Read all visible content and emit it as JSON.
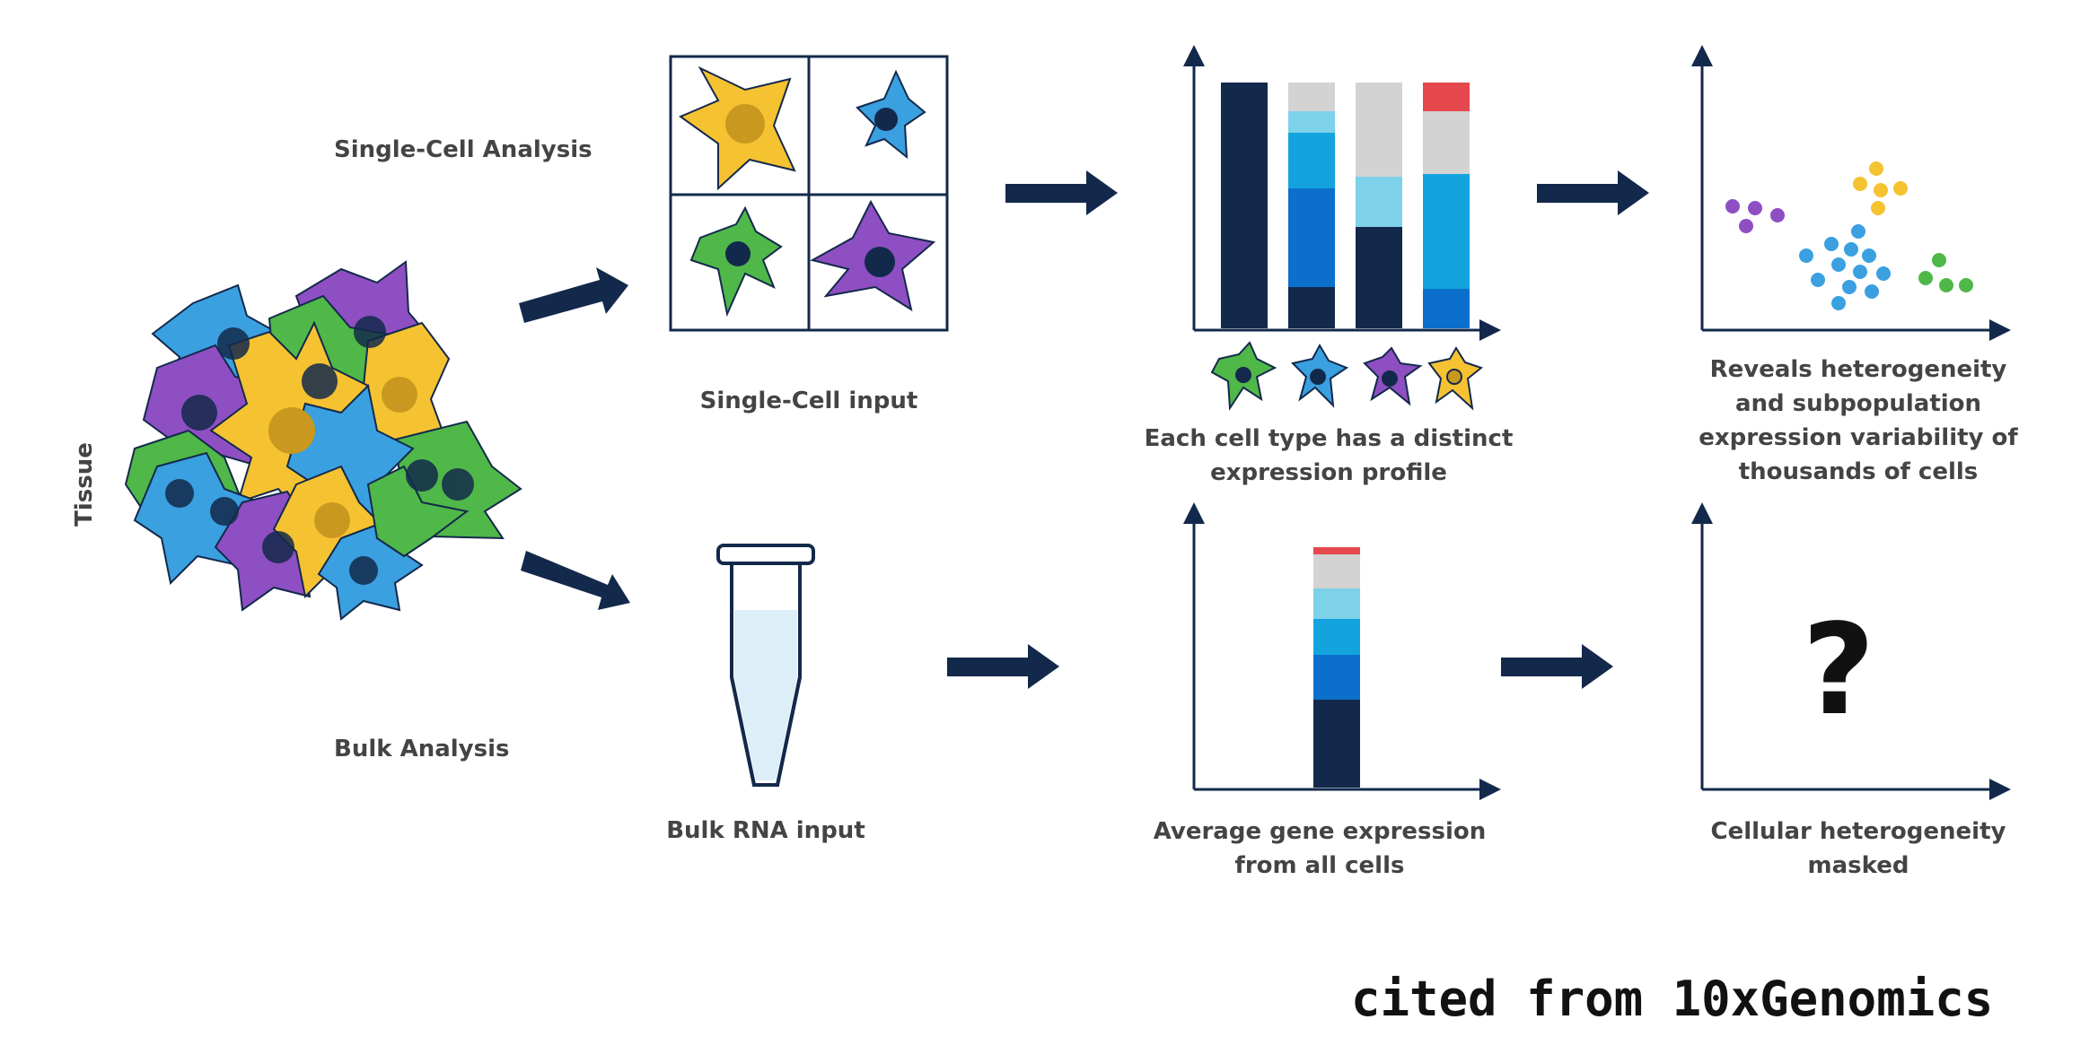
{
  "labels": {
    "tissue": "Tissue",
    "single_cell_analysis": "Single-Cell Analysis",
    "bulk_analysis": "Bulk Analysis",
    "single_cell_input": "Single-Cell input",
    "bulk_rna_input": "Bulk RNA input",
    "distinct_profile_line1": "Each cell type has a distinct",
    "distinct_profile_line2": "expression profile",
    "heterogeneity_line1": "Reveals heterogeneity",
    "heterogeneity_line2": "and subpopulation",
    "heterogeneity_line3": "expression variability of",
    "heterogeneity_line4": "thousands of cells",
    "average_line1": "Average gene expression",
    "average_line2": "from all cells",
    "masked_line1": "Cellular heterogeneity",
    "masked_line2": "masked",
    "question_mark": "?",
    "citation": "cited from 10xGenomics"
  },
  "colors": {
    "navy": "#13294b",
    "blue": "#0b6fcb",
    "mid_blue": "#13a4e0",
    "light_blue": "#7dd1e8",
    "gray": "#d3d3d3",
    "red": "#e5484d",
    "cell_yellow": "#f5c231",
    "cell_blue": "#3aa0e0",
    "cell_green": "#4fb848",
    "cell_purple": "#8e4fc3",
    "text": "#444444"
  }
}
